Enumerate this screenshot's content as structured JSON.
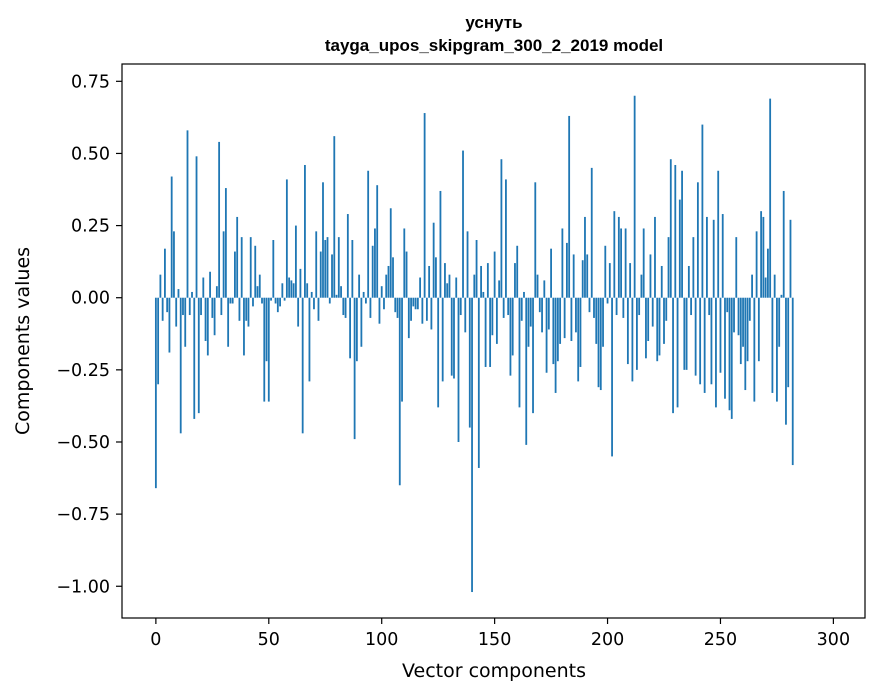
{
  "chart_data": {
    "type": "bar",
    "title": "уснуть",
    "subtitle": "tayga_upos_skipgram_300_2_2019 model",
    "xlabel": "Vector components",
    "ylabel": "Components values",
    "xlim": [
      -15,
      314
    ],
    "ylim": [
      -1.11,
      0.81
    ],
    "x_ticks": [
      0,
      50,
      100,
      150,
      200,
      250,
      300
    ],
    "x_tick_labels": [
      "0",
      "50",
      "100",
      "150",
      "200",
      "250",
      "300"
    ],
    "y_ticks": [
      0.75,
      0.5,
      0.25,
      0.0,
      -0.25,
      -0.5,
      -0.75,
      -1.0
    ],
    "y_tick_labels": [
      "0.75",
      "0.50",
      "0.25",
      "0.00",
      "−0.25",
      "−0.50",
      "−0.75",
      "−1.00"
    ],
    "grid": false,
    "bar_color": "#1f77b4",
    "x": "0..299",
    "values": [
      -0.66,
      -0.3,
      0.08,
      -0.08,
      0.17,
      -0.05,
      -0.19,
      0.42,
      0.23,
      -0.1,
      0.03,
      -0.47,
      -0.06,
      -0.17,
      0.58,
      -0.06,
      0.02,
      -0.42,
      0.49,
      -0.4,
      -0.06,
      0.07,
      -0.15,
      -0.2,
      0.09,
      -0.07,
      -0.13,
      0.04,
      0.54,
      -0.06,
      0.23,
      0.38,
      -0.17,
      -0.02,
      -0.02,
      0.16,
      0.28,
      -0.08,
      0.21,
      -0.2,
      -0.08,
      -0.1,
      0.21,
      -0.03,
      0.18,
      0.04,
      0.08,
      -0.02,
      -0.36,
      -0.22,
      -0.36,
      -0.01,
      0.2,
      -0.02,
      -0.05,
      -0.03,
      0.05,
      -0.01,
      0.41,
      0.07,
      0.06,
      0.05,
      0.25,
      -0.1,
      0.1,
      -0.47,
      0.46,
      0.05,
      -0.29,
      0.02,
      -0.04,
      0.23,
      -0.08,
      0.16,
      0.4,
      0.2,
      0.21,
      -0.02,
      0.15,
      0.56,
      0.01,
      0.21,
      0.04,
      -0.06,
      -0.07,
      0.29,
      -0.21,
      0.2,
      -0.49,
      -0.22,
      0.08,
      -0.17,
      0.02,
      -0.02,
      0.44,
      -0.07,
      0.18,
      0.24,
      0.39,
      -0.09,
      0.04,
      -0.04,
      0.08,
      0.11,
      0.31,
      0.14,
      -0.05,
      -0.07,
      -0.65,
      -0.36,
      0.24,
      0.16,
      -0.14,
      -0.08,
      -0.03,
      -0.04,
      -0.04,
      0.07,
      -0.09,
      0.64,
      -0.08,
      0.11,
      -0.11,
      0.26,
      0.14,
      -0.38,
      0.37,
      -0.29,
      0.12,
      0.05,
      0.08,
      -0.27,
      -0.28,
      0.07,
      -0.5,
      -0.06,
      0.51,
      -0.12,
      0.23,
      -0.45,
      -1.02,
      0.08,
      0.2,
      -0.59,
      0.11,
      0.02,
      -0.24,
      0.12,
      -0.24,
      -0.13,
      0.16,
      -0.16,
      0.06,
      0.48,
      -0.07,
      0.41,
      -0.06,
      -0.27,
      -0.2,
      0.12,
      0.18,
      -0.38,
      -0.08,
      0.02,
      -0.51,
      -0.17,
      -0.1,
      -0.4,
      0.4,
      0.08,
      -0.05,
      -0.12,
      0.06,
      -0.26,
      -0.11,
      0.17,
      -0.23,
      -0.33,
      -0.22,
      -0.16,
      0.24,
      -0.14,
      0.19,
      0.63,
      -0.15,
      0.15,
      -0.12,
      -0.29,
      -0.24,
      0.13,
      0.28,
      0.15,
      -0.05,
      0.45,
      -0.07,
      -0.16,
      -0.31,
      -0.32,
      -0.17,
      0.18,
      -0.02,
      0.12,
      -0.55,
      0.3,
      -0.06,
      0.28,
      0.24,
      -0.07,
      0.24,
      -0.23,
      0.12,
      -0.29,
      0.7,
      -0.25,
      -0.06,
      0.08,
      0.24,
      -0.21,
      -0.15,
      0.15,
      -0.1,
      0.28,
      -0.22,
      -0.2,
      0.11,
      -0.16,
      -0.08,
      0.21,
      0.48,
      -0.4,
      0.46,
      -0.38,
      0.34,
      0.44,
      -0.25,
      -0.25,
      0.11,
      -0.06,
      0.21,
      -0.27,
      0.4,
      -0.3,
      0.6,
      -0.33,
      0.28,
      -0.06,
      -0.3,
      0.27,
      -0.38,
      0.44,
      -0.26,
      0.29,
      -0.35,
      -0.05,
      -0.39,
      -0.42,
      -0.12,
      0.21,
      -0.13,
      -0.23,
      -0.17,
      -0.32,
      -0.22,
      -0.08,
      0.08,
      -0.36,
      0.23,
      -0.22,
      0.3,
      0.28,
      0.07,
      0.17,
      0.69,
      -0.33,
      0.08,
      -0.36,
      -0.17,
      0.01,
      0.37,
      -0.44,
      -0.31,
      0.27,
      -0.58
    ]
  }
}
